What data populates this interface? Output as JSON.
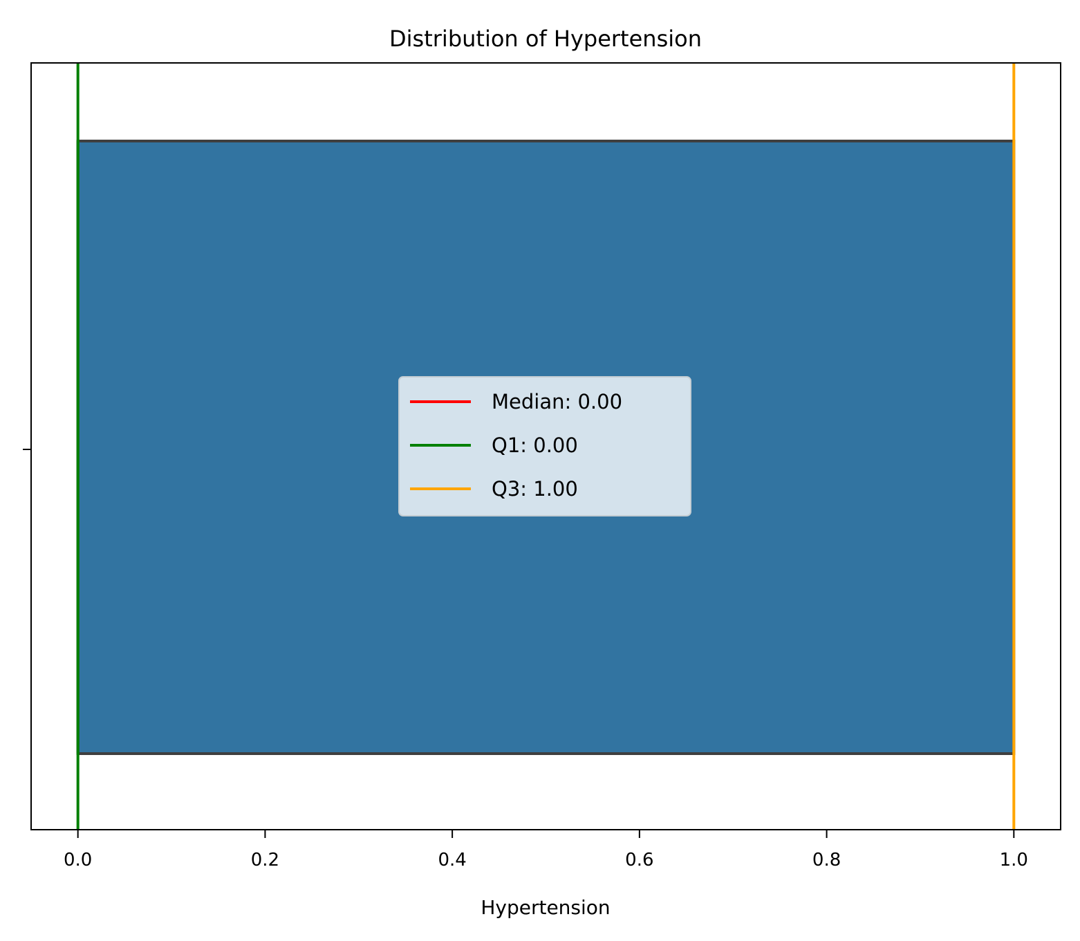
{
  "chart_data": {
    "type": "box",
    "title": "Distribution of Hypertension",
    "xlabel": "Hypertension",
    "ylabel": "",
    "xlim": [
      -0.05,
      1.05
    ],
    "xticks": [
      0.0,
      0.2,
      0.4,
      0.6,
      0.8,
      1.0
    ],
    "xtick_labels": [
      "0.0",
      "0.2",
      "0.4",
      "0.6",
      "0.8",
      "1.0"
    ],
    "box": {
      "min": 0.0,
      "q1": 0.0,
      "median": 0.0,
      "q3": 1.0,
      "max": 1.0,
      "fill": "#3274a1",
      "edge": "#3f3f3f"
    },
    "reference_lines": [
      {
        "name": "Median",
        "value": 0.0,
        "color": "#ff0000",
        "label": "Median: 0.00"
      },
      {
        "name": "Q1",
        "value": 0.0,
        "color": "#008000",
        "label": "Q1: 0.00"
      },
      {
        "name": "Q3",
        "value": 1.0,
        "color": "#ffa500",
        "label": "Q3: 1.00"
      }
    ],
    "legend": {
      "placement": "center"
    },
    "grid": false
  }
}
